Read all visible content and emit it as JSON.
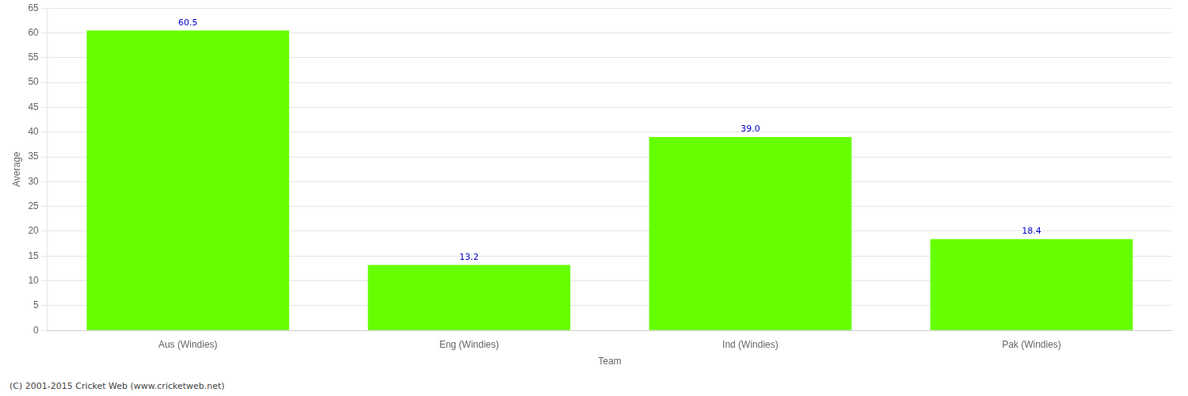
{
  "chart_data": {
    "type": "bar",
    "categories": [
      "Aus (Windies)",
      "Eng (Windies)",
      "Ind (Windies)",
      "Pak (Windies)"
    ],
    "values": [
      60.5,
      13.2,
      39.0,
      18.4
    ],
    "value_labels": [
      "60.5",
      "13.2",
      "39.0",
      "18.4"
    ],
    "data_labels": true,
    "color": "#66ff00",
    "xlabel": "Team",
    "ylabel": "Average",
    "ylim": [
      0,
      65
    ],
    "yticks": [
      0,
      5,
      10,
      15,
      20,
      25,
      30,
      35,
      40,
      45,
      50,
      55,
      60,
      65
    ],
    "grid": true,
    "annotations": [
      "(C) 2001-2015 Cricket Web (www.cricketweb.net)"
    ]
  }
}
